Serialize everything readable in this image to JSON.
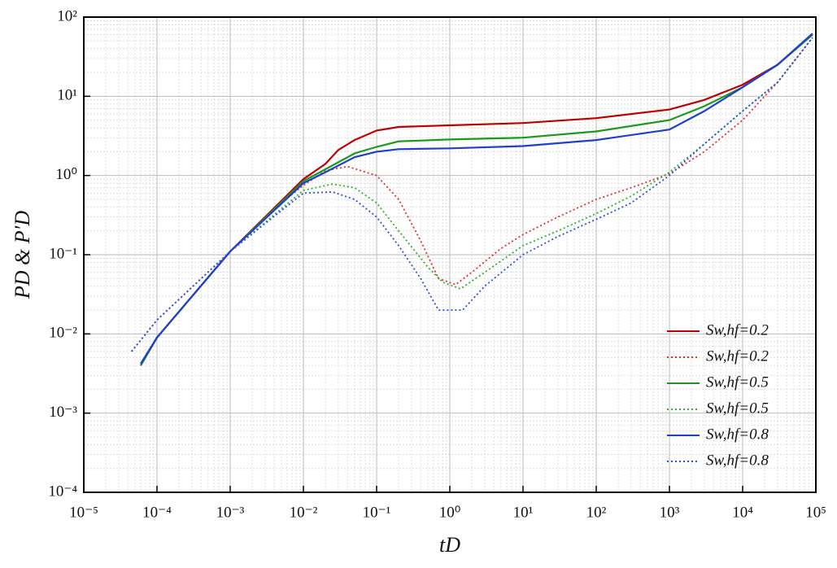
{
  "chart_data": {
    "type": "line",
    "x_label": "tD",
    "y_label": "PD & P′D",
    "log_x": true,
    "log_y": true,
    "grid": true,
    "minor_grid": true,
    "legend": "lower right",
    "xlim": [
      1e-05,
      100000
    ],
    "ylim": [
      0.0001,
      100
    ],
    "xticks": [
      {
        "value": 1e-05,
        "label": "10⁻⁵"
      },
      {
        "value": 0.0001,
        "label": "10⁻⁴"
      },
      {
        "value": 0.001,
        "label": "10⁻³"
      },
      {
        "value": 0.01,
        "label": "10⁻²"
      },
      {
        "value": 0.1,
        "label": "10⁻¹"
      },
      {
        "value": 1,
        "label": "10⁰"
      },
      {
        "value": 10,
        "label": "10¹"
      },
      {
        "value": 100,
        "label": "10²"
      },
      {
        "value": 1000,
        "label": "10³"
      },
      {
        "value": 10000,
        "label": "10⁴"
      },
      {
        "value": 100000,
        "label": "10⁵"
      }
    ],
    "yticks": [
      {
        "value": 0.0001,
        "label": "10⁻⁴"
      },
      {
        "value": 0.001,
        "label": "10⁻³"
      },
      {
        "value": 0.01,
        "label": "10⁻²"
      },
      {
        "value": 0.1,
        "label": "10⁻¹"
      },
      {
        "value": 1,
        "label": "10⁰"
      },
      {
        "value": 10,
        "label": "10¹"
      },
      {
        "value": 100,
        "label": "10²"
      }
    ],
    "series": [
      {
        "name": "Sw,hf=0.2",
        "color": "#c00000",
        "dash": "solid",
        "x": [
          6e-05,
          0.0001,
          0.001,
          0.01,
          0.02,
          0.03,
          0.05,
          0.1,
          0.2,
          1,
          10,
          100,
          1000,
          3000,
          10000,
          30000,
          90000
        ],
        "values": [
          0.004,
          0.009,
          0.11,
          0.9,
          1.4,
          2.1,
          2.8,
          3.7,
          4.1,
          4.3,
          4.6,
          5.3,
          6.8,
          9,
          14,
          25,
          60
        ]
      },
      {
        "name": "Sw,hf=0.2",
        "color": "#e03030",
        "dash": "dotted",
        "x": [
          4.5e-05,
          0.0001,
          0.001,
          0.005,
          0.01,
          0.02,
          0.04,
          0.1,
          0.2,
          0.4,
          0.7,
          1.2,
          2,
          5,
          10,
          30,
          100,
          300,
          1000,
          3000,
          10000,
          30000,
          90000
        ],
        "values": [
          0.006,
          0.015,
          0.11,
          0.45,
          0.75,
          1.15,
          1.3,
          1.0,
          0.5,
          0.15,
          0.05,
          0.042,
          0.06,
          0.12,
          0.18,
          0.3,
          0.5,
          0.7,
          1.05,
          2.0,
          5,
          15,
          55
        ]
      },
      {
        "name": "Sw,hf=0.5",
        "color": "#1a9a1a",
        "dash": "solid",
        "x": [
          6e-05,
          0.0001,
          0.001,
          0.01,
          0.02,
          0.05,
          0.1,
          0.2,
          1,
          10,
          100,
          1000,
          3000,
          10000,
          30000,
          90000
        ],
        "values": [
          0.004,
          0.009,
          0.11,
          0.85,
          1.2,
          1.9,
          2.3,
          2.7,
          2.85,
          3.0,
          3.6,
          5.0,
          7.5,
          13,
          25,
          60
        ]
      },
      {
        "name": "Sw,hf=0.5",
        "color": "#30b030",
        "dash": "dotted",
        "x": [
          4.5e-05,
          0.0001,
          0.001,
          0.01,
          0.025,
          0.05,
          0.1,
          0.2,
          0.5,
          0.8,
          1.4,
          3,
          10,
          30,
          100,
          300,
          1000,
          3000,
          10000,
          30000,
          90000
        ],
        "values": [
          0.006,
          0.015,
          0.11,
          0.65,
          0.78,
          0.7,
          0.45,
          0.2,
          0.07,
          0.045,
          0.037,
          0.06,
          0.13,
          0.2,
          0.33,
          0.55,
          1.1,
          2.5,
          6.5,
          15,
          55
        ]
      },
      {
        "name": "Sw,hf=0.8",
        "color": "#1f3fcf",
        "dash": "solid",
        "x": [
          6e-05,
          0.0001,
          0.001,
          0.01,
          0.02,
          0.05,
          0.1,
          0.2,
          1,
          10,
          100,
          1000,
          3000,
          10000,
          30000,
          90000
        ],
        "values": [
          0.0042,
          0.009,
          0.11,
          0.8,
          1.1,
          1.7,
          2.0,
          2.15,
          2.2,
          2.35,
          2.8,
          3.8,
          6.5,
          13,
          25,
          62
        ]
      },
      {
        "name": "Sw,hf=0.8",
        "color": "#2f4fdf",
        "dash": "dotted",
        "x": [
          4.5e-05,
          0.0001,
          0.001,
          0.01,
          0.025,
          0.05,
          0.1,
          0.2,
          0.4,
          0.7,
          1.5,
          3,
          10,
          30,
          100,
          300,
          1000,
          3000,
          10000,
          30000,
          90000
        ],
        "values": [
          0.006,
          0.015,
          0.11,
          0.6,
          0.62,
          0.5,
          0.3,
          0.13,
          0.05,
          0.02,
          0.02,
          0.04,
          0.1,
          0.17,
          0.28,
          0.45,
          1.0,
          2.5,
          6.5,
          15,
          55
        ]
      }
    ]
  }
}
